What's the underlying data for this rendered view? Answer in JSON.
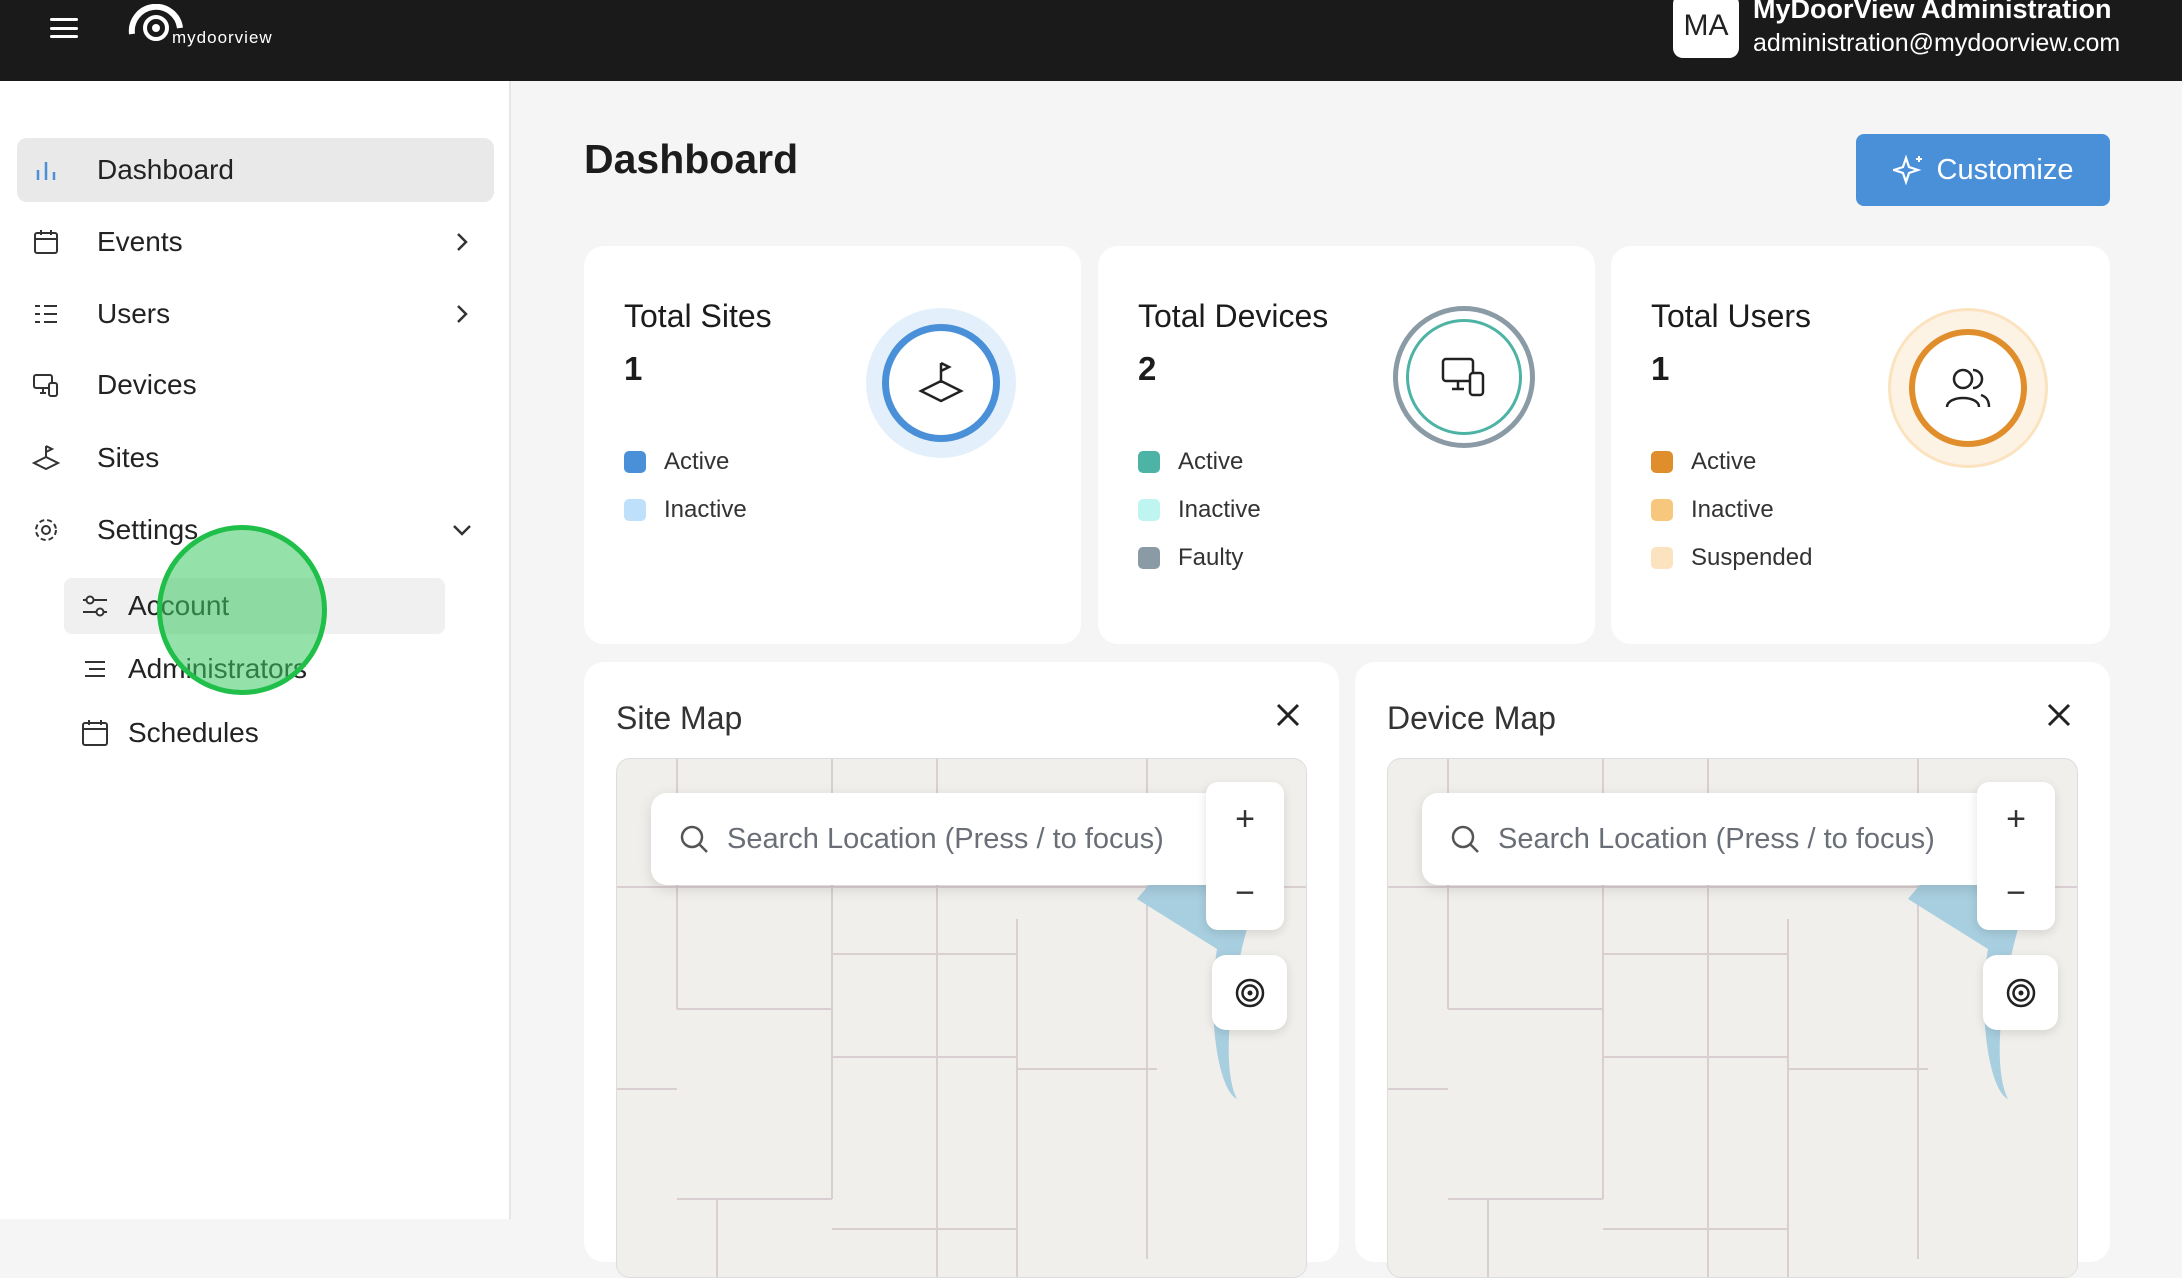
{
  "header": {
    "logo_text": "mydoorview",
    "avatar_initials": "MA",
    "user_name": "MyDoorView Administration",
    "user_email": "administration@mydoorview.com"
  },
  "sidebar": {
    "items": [
      {
        "label": "Dashboard",
        "icon": "bar-chart-icon"
      },
      {
        "label": "Events",
        "icon": "calendar-icon"
      },
      {
        "label": "Users",
        "icon": "list-icon"
      },
      {
        "label": "Devices",
        "icon": "devices-icon"
      },
      {
        "label": "Sites",
        "icon": "site-icon"
      },
      {
        "label": "Settings",
        "icon": "gear-icon"
      }
    ],
    "settings_sub": [
      {
        "label": "Account",
        "icon": "sliders-icon"
      },
      {
        "label": "Administrators",
        "icon": "list-icon"
      },
      {
        "label": "Schedules",
        "icon": "calendar-icon"
      }
    ]
  },
  "main": {
    "title": "Dashboard",
    "customize_label": "Customize",
    "cards": [
      {
        "title": "Total Sites",
        "value": "1",
        "legend": [
          {
            "label": "Active",
            "color": "#4a90d9"
          },
          {
            "label": "Inactive",
            "color": "#bfe0fb"
          }
        ]
      },
      {
        "title": "Total Devices",
        "value": "2",
        "legend": [
          {
            "label": "Active",
            "color": "#4db3a5"
          },
          {
            "label": "Inactive",
            "color": "#bff5f0"
          },
          {
            "label": "Faulty",
            "color": "#8a9ba6"
          }
        ]
      },
      {
        "title": "Total Users",
        "value": "1",
        "legend": [
          {
            "label": "Active",
            "color": "#e08e2b"
          },
          {
            "label": "Inactive",
            "color": "#f7c77e"
          },
          {
            "label": "Suspended",
            "color": "#fbe3bf"
          }
        ]
      }
    ],
    "maps": [
      {
        "title": "Site Map",
        "search_placeholder": "Search Location (Press / to focus)",
        "zoom_in": "+",
        "zoom_out": "−"
      },
      {
        "title": "Device Map",
        "search_placeholder": "Search Location (Press / to focus)",
        "zoom_in": "+",
        "zoom_out": "−"
      }
    ]
  }
}
